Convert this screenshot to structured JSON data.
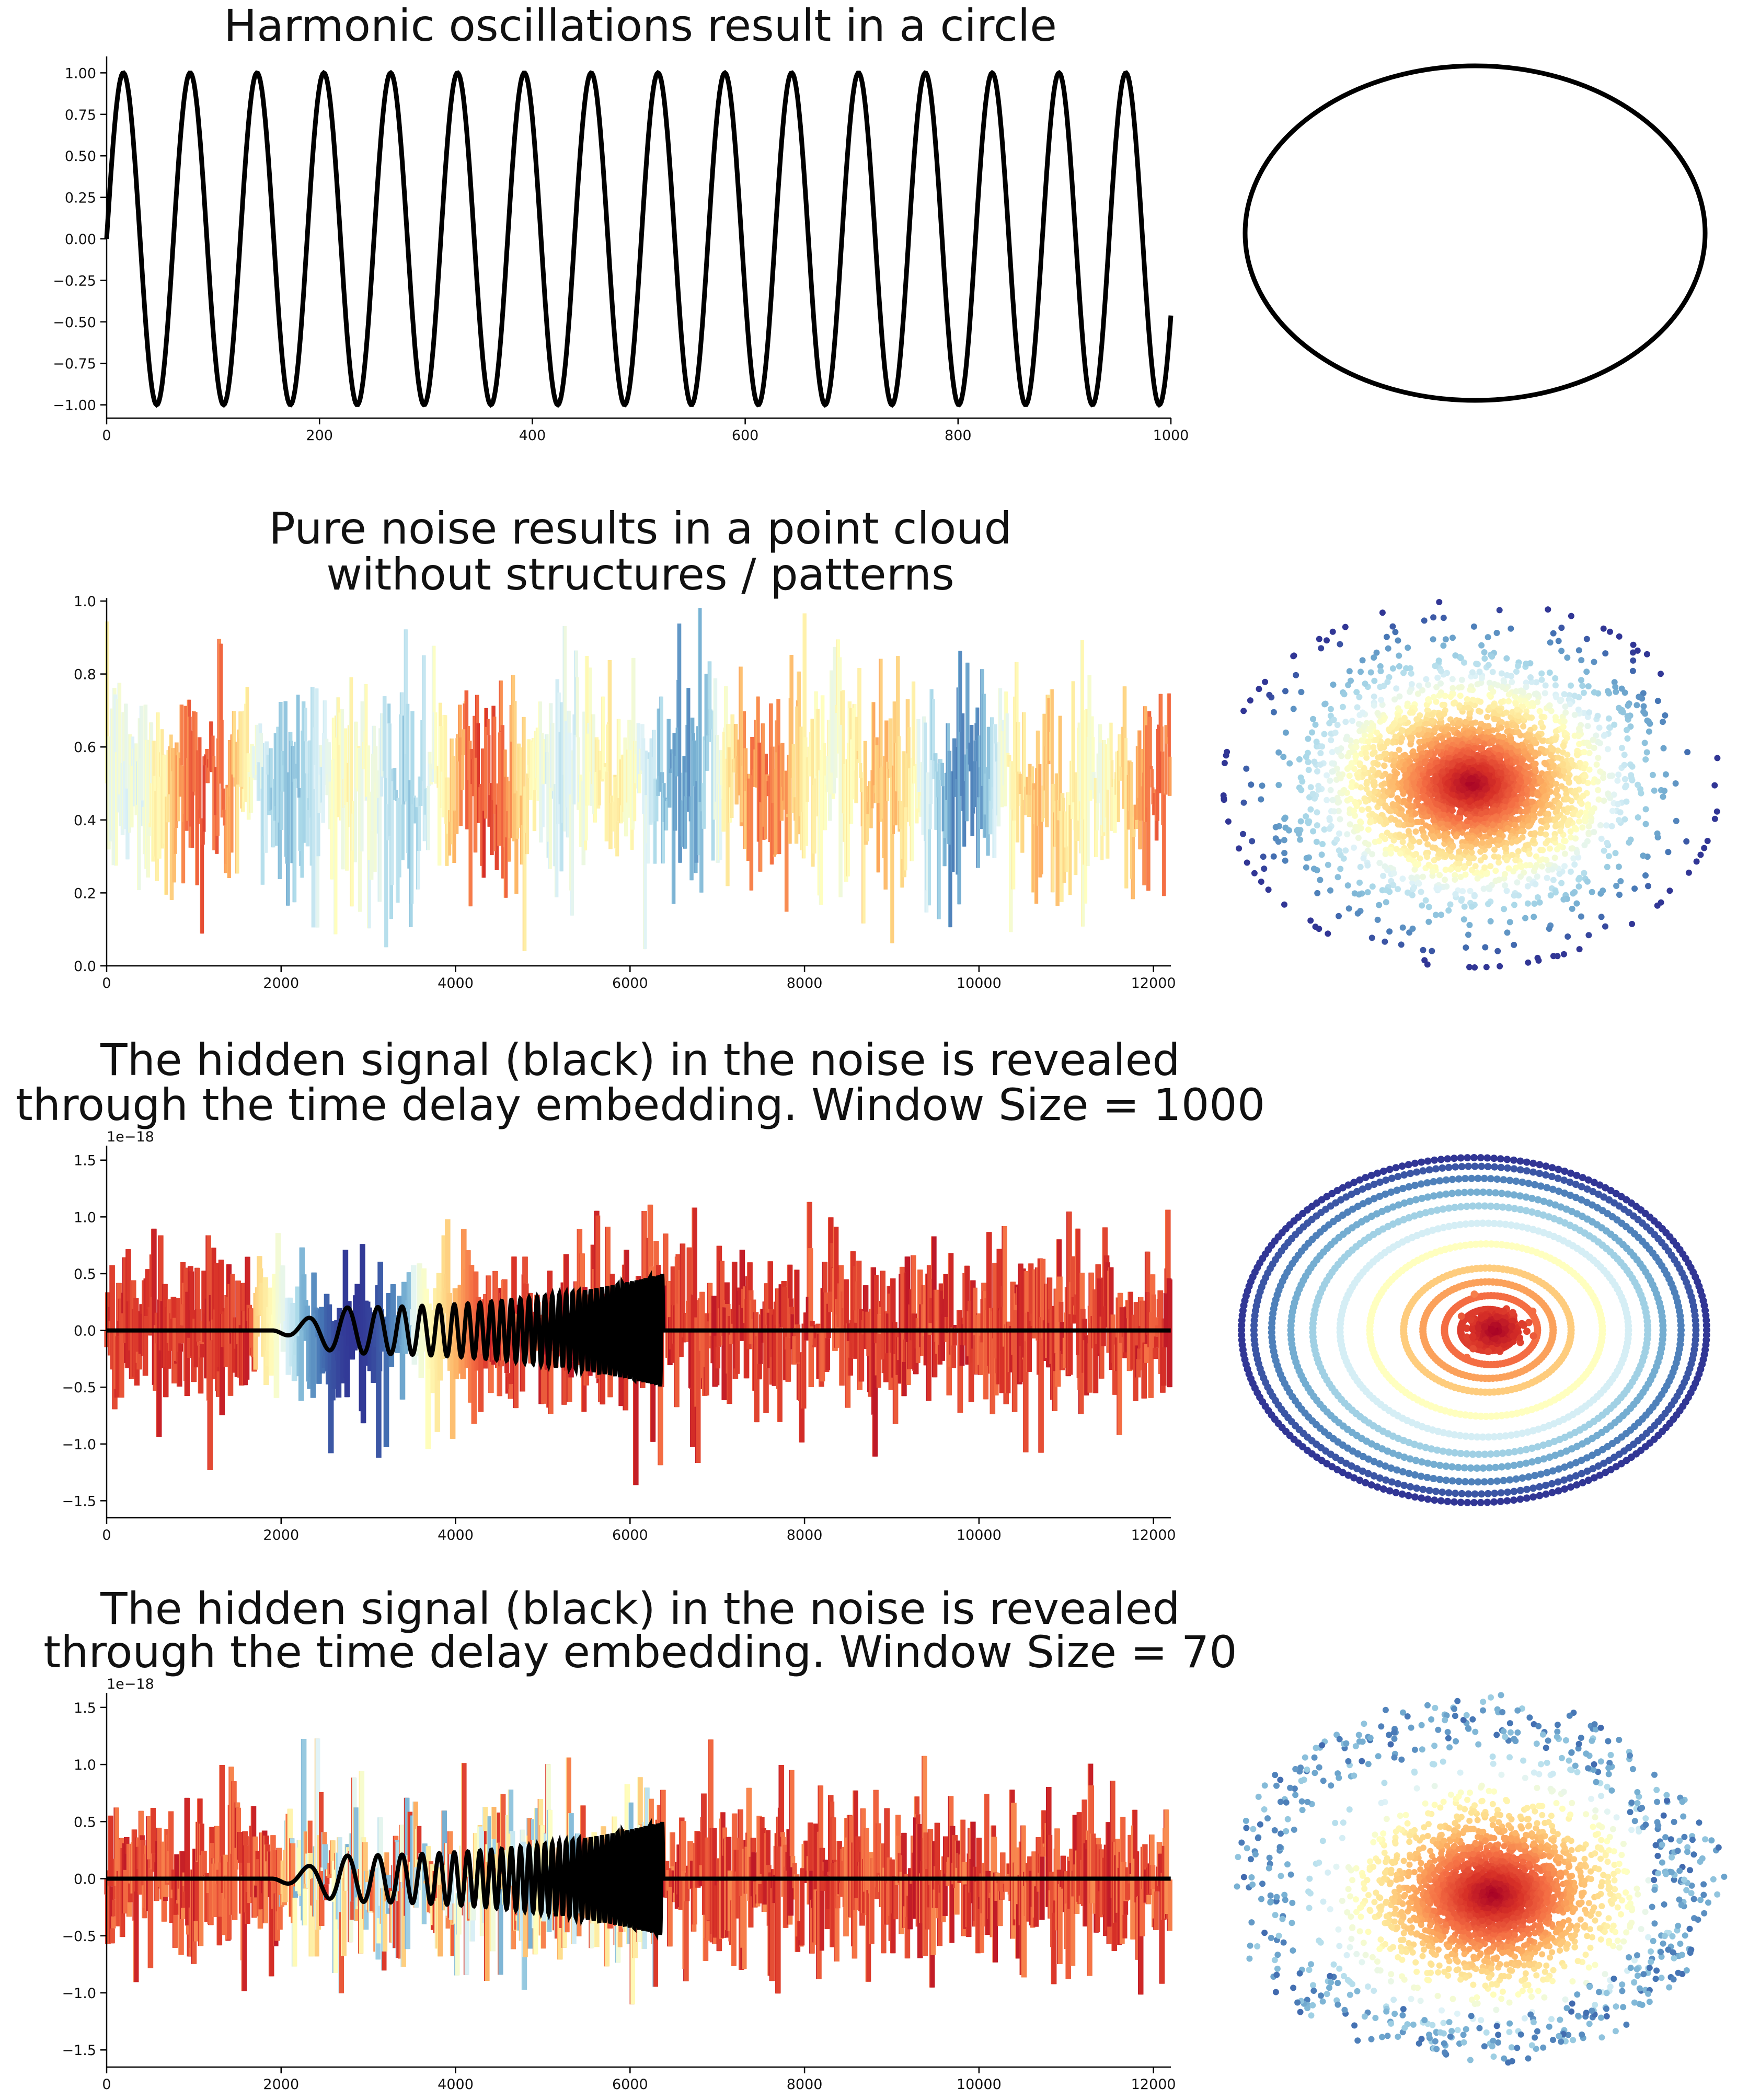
{
  "chart_data": [
    {
      "id": "harmonic",
      "type": "line",
      "title": [
        "Harmonic oscillations result in a circle"
      ],
      "xlim": [
        0,
        1000
      ],
      "ylim": [
        -1.08,
        1.08
      ],
      "xticks": [
        0,
        200,
        400,
        600,
        800,
        1000
      ],
      "xtick_labels": [
        "0",
        "200",
        "400",
        "600",
        "800",
        "1000"
      ],
      "yticks": [
        -1.0,
        -0.75,
        -0.5,
        -0.25,
        0.0,
        0.25,
        0.5,
        0.75,
        1.0
      ],
      "ytick_labels": [
        "−1.00",
        "−0.75",
        "−0.50",
        "−0.25",
        "0.00",
        "0.25",
        "0.50",
        "0.75",
        "1.00"
      ],
      "series": [
        {
          "kind": "sine",
          "amplitude": 1.0,
          "period": 62.8,
          "phase": 0,
          "color": "#000000"
        }
      ],
      "embedding": {
        "shape": "circle",
        "color": "#000000"
      }
    },
    {
      "id": "noise",
      "type": "line",
      "title": [
        "Pure noise results in a point cloud",
        "without structures / patterns"
      ],
      "xlim": [
        0,
        12200
      ],
      "ylim": [
        0.0,
        1.0
      ],
      "xticks": [
        0,
        2000,
        4000,
        6000,
        8000,
        10000,
        12000
      ],
      "xtick_labels": [
        "0",
        "2000",
        "4000",
        "6000",
        "8000",
        "10000",
        "12000"
      ],
      "yticks": [
        0.0,
        0.2,
        0.4,
        0.6,
        0.8,
        1.0
      ],
      "ytick_labels": [
        "0.0",
        "0.2",
        "0.4",
        "0.6",
        "0.8",
        "1.0"
      ],
      "series": [
        {
          "kind": "uniform-noise",
          "min": 0.0,
          "max": 1.0,
          "colormap": "RdYlBu"
        }
      ],
      "embedding": {
        "shape": "point-cloud",
        "colormap": "RdYlBu"
      }
    },
    {
      "id": "window1000",
      "type": "line",
      "title": [
        "The hidden signal (black) in the noise is revealed",
        "through the time delay embedding. Window Size = 1000"
      ],
      "offset_text": "1e−18",
      "xlim": [
        0,
        12200
      ],
      "ylim": [
        -1.65,
        1.6
      ],
      "xticks": [
        0,
        2000,
        4000,
        6000,
        8000,
        10000,
        12000
      ],
      "xtick_labels": [
        "0",
        "2000",
        "4000",
        "6000",
        "8000",
        "10000",
        "12000"
      ],
      "yticks": [
        -1.5,
        -1.0,
        -0.5,
        0.0,
        0.5,
        1.0,
        1.5
      ],
      "ytick_labels": [
        "−1.5",
        "−1.0",
        "−0.5",
        "0.0",
        "0.5",
        "1.0",
        "1.5"
      ],
      "series": [
        {
          "kind": "noise",
          "amplitude": 0.7,
          "colormap": "RdYlBu"
        },
        {
          "kind": "chirp",
          "start": 1900,
          "end": 6380,
          "amplitude": 0.2,
          "color": "#000000"
        }
      ],
      "embedding": {
        "shape": "concentric-rings",
        "colormap": "RdYlBu"
      }
    },
    {
      "id": "window70",
      "type": "line",
      "title": [
        "The hidden signal (black) in the noise is revealed",
        "through the time delay embedding. Window Size = 70"
      ],
      "offset_text": "1e−18",
      "xlim": [
        0,
        12200
      ],
      "ylim": [
        -1.65,
        1.6
      ],
      "xticks": [
        0,
        2000,
        4000,
        6000,
        8000,
        10000,
        12000
      ],
      "xtick_labels": [
        "0",
        "2000",
        "4000",
        "6000",
        "8000",
        "10000",
        "12000"
      ],
      "yticks": [
        -1.5,
        -1.0,
        -0.5,
        0.0,
        0.5,
        1.0,
        1.5
      ],
      "ytick_labels": [
        "−1.5",
        "−1.0",
        "−0.5",
        "0.0",
        "0.5",
        "1.0",
        "1.5"
      ],
      "series": [
        {
          "kind": "noise",
          "amplitude": 0.7,
          "colormap": "RdYlBu"
        },
        {
          "kind": "chirp",
          "start": 1900,
          "end": 6380,
          "amplitude": 0.2,
          "color": "#000000"
        }
      ],
      "embedding": {
        "shape": "point-cloud-with-loops",
        "colormap": "RdYlBu"
      }
    }
  ]
}
